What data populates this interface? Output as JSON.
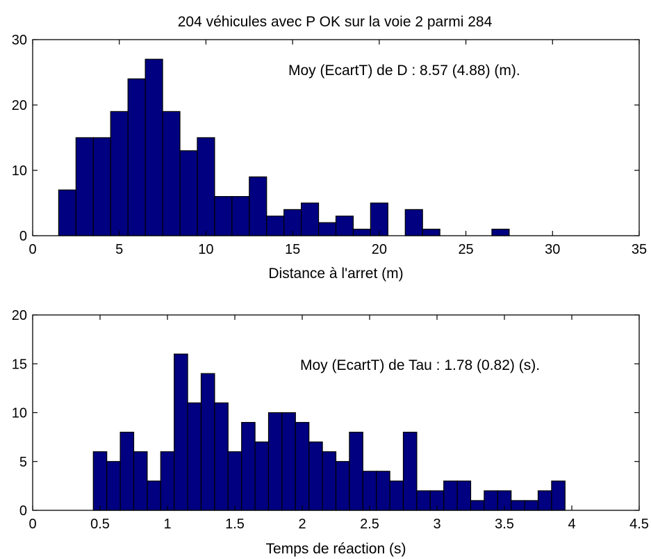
{
  "figure": {
    "title": "204 véhicules avec P OK sur la voie 2 parmi  284",
    "bar_color": "#000080",
    "edge_color": "#000000"
  },
  "chart_data": [
    {
      "type": "bar",
      "title": "204 véhicules avec P OK sur la voie 2 parmi  284",
      "xlabel": "Distance à l'arret (m)",
      "ylabel": "",
      "xlim": [
        0,
        35
      ],
      "ylim": [
        0,
        30
      ],
      "xticks": [
        "0",
        "5",
        "10",
        "15",
        "20",
        "25",
        "30",
        "35"
      ],
      "yticks": [
        "0",
        "10",
        "20",
        "30"
      ],
      "annotation": "Moy (EcartT) de D : 8.57 (4.88) (m).",
      "bins": [
        {
          "x0": 1.5,
          "x1": 2.5,
          "value": 7
        },
        {
          "x0": 2.5,
          "x1": 3.5,
          "value": 15
        },
        {
          "x0": 3.5,
          "x1": 4.5,
          "value": 15
        },
        {
          "x0": 4.5,
          "x1": 5.5,
          "value": 19
        },
        {
          "x0": 5.5,
          "x1": 6.5,
          "value": 24
        },
        {
          "x0": 6.5,
          "x1": 7.5,
          "value": 27
        },
        {
          "x0": 7.5,
          "x1": 8.5,
          "value": 19
        },
        {
          "x0": 8.5,
          "x1": 9.5,
          "value": 13
        },
        {
          "x0": 9.5,
          "x1": 10.5,
          "value": 15
        },
        {
          "x0": 10.5,
          "x1": 11.5,
          "value": 6
        },
        {
          "x0": 11.5,
          "x1": 12.5,
          "value": 6
        },
        {
          "x0": 12.5,
          "x1": 13.5,
          "value": 9
        },
        {
          "x0": 13.5,
          "x1": 14.5,
          "value": 3
        },
        {
          "x0": 14.5,
          "x1": 15.5,
          "value": 4
        },
        {
          "x0": 15.5,
          "x1": 16.5,
          "value": 5
        },
        {
          "x0": 16.5,
          "x1": 17.5,
          "value": 2
        },
        {
          "x0": 17.5,
          "x1": 18.5,
          "value": 3
        },
        {
          "x0": 18.5,
          "x1": 19.5,
          "value": 1
        },
        {
          "x0": 19.5,
          "x1": 20.5,
          "value": 5
        },
        {
          "x0": 21.5,
          "x1": 22.5,
          "value": 4
        },
        {
          "x0": 22.5,
          "x1": 23.5,
          "value": 1
        },
        {
          "x0": 26.5,
          "x1": 27.5,
          "value": 1
        }
      ]
    },
    {
      "type": "bar",
      "xlabel": "Temps de réaction (s)",
      "ylabel": "",
      "xlim": [
        0,
        4.5
      ],
      "ylim": [
        0,
        20
      ],
      "xticks": [
        "0",
        "0.5",
        "1",
        "1.5",
        "2",
        "2.5",
        "3",
        "3.5",
        "4",
        "4.5"
      ],
      "yticks": [
        "0",
        "5",
        "10",
        "15",
        "20"
      ],
      "annotation": "Moy (EcartT) de Tau : 1.78 (0.82) (s).",
      "bins": [
        {
          "x0": 0.45,
          "x1": 0.55,
          "value": 6
        },
        {
          "x0": 0.55,
          "x1": 0.65,
          "value": 5
        },
        {
          "x0": 0.65,
          "x1": 0.75,
          "value": 8
        },
        {
          "x0": 0.75,
          "x1": 0.85,
          "value": 6
        },
        {
          "x0": 0.85,
          "x1": 0.95,
          "value": 3
        },
        {
          "x0": 0.95,
          "x1": 1.05,
          "value": 6
        },
        {
          "x0": 1.05,
          "x1": 1.15,
          "value": 16
        },
        {
          "x0": 1.15,
          "x1": 1.25,
          "value": 11
        },
        {
          "x0": 1.25,
          "x1": 1.35,
          "value": 14
        },
        {
          "x0": 1.35,
          "x1": 1.45,
          "value": 11
        },
        {
          "x0": 1.45,
          "x1": 1.55,
          "value": 6
        },
        {
          "x0": 1.55,
          "x1": 1.65,
          "value": 9
        },
        {
          "x0": 1.65,
          "x1": 1.75,
          "value": 7
        },
        {
          "x0": 1.75,
          "x1": 1.85,
          "value": 10
        },
        {
          "x0": 1.85,
          "x1": 1.95,
          "value": 10
        },
        {
          "x0": 1.95,
          "x1": 2.05,
          "value": 9
        },
        {
          "x0": 2.05,
          "x1": 2.15,
          "value": 7
        },
        {
          "x0": 2.15,
          "x1": 2.25,
          "value": 6
        },
        {
          "x0": 2.25,
          "x1": 2.35,
          "value": 5
        },
        {
          "x0": 2.35,
          "x1": 2.45,
          "value": 8
        },
        {
          "x0": 2.45,
          "x1": 2.55,
          "value": 4
        },
        {
          "x0": 2.55,
          "x1": 2.65,
          "value": 4
        },
        {
          "x0": 2.65,
          "x1": 2.75,
          "value": 3
        },
        {
          "x0": 2.75,
          "x1": 2.85,
          "value": 8
        },
        {
          "x0": 2.85,
          "x1": 2.95,
          "value": 2
        },
        {
          "x0": 2.95,
          "x1": 3.05,
          "value": 2
        },
        {
          "x0": 3.05,
          "x1": 3.15,
          "value": 3
        },
        {
          "x0": 3.15,
          "x1": 3.25,
          "value": 3
        },
        {
          "x0": 3.25,
          "x1": 3.35,
          "value": 1
        },
        {
          "x0": 3.35,
          "x1": 3.45,
          "value": 2
        },
        {
          "x0": 3.45,
          "x1": 3.55,
          "value": 2
        },
        {
          "x0": 3.55,
          "x1": 3.65,
          "value": 1
        },
        {
          "x0": 3.65,
          "x1": 3.75,
          "value": 1
        },
        {
          "x0": 3.75,
          "x1": 3.85,
          "value": 2
        },
        {
          "x0": 3.85,
          "x1": 3.95,
          "value": 3
        }
      ]
    }
  ]
}
